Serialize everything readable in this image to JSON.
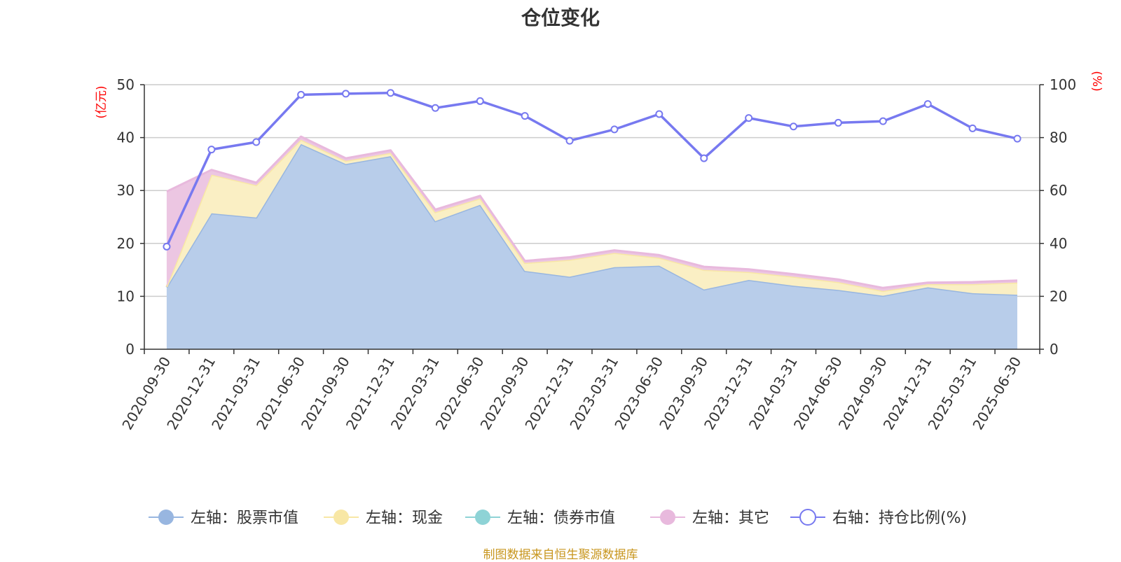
{
  "title": "仓位变化",
  "footer": "制图数据来自恒生聚源数据库",
  "chart_data": {
    "type": "area",
    "title": "仓位变化",
    "categories": [
      "2020-09-30",
      "2020-12-31",
      "2021-03-31",
      "2021-06-30",
      "2021-09-30",
      "2021-12-31",
      "2022-03-31",
      "2022-06-30",
      "2022-09-30",
      "2022-12-31",
      "2023-03-31",
      "2023-06-30",
      "2023-09-30",
      "2023-12-31",
      "2024-03-31",
      "2024-06-30",
      "2024-09-30",
      "2024-12-31",
      "2025-03-31",
      "2025-06-30"
    ],
    "left_axis": {
      "name": "(亿元)",
      "ylim": [
        0,
        50
      ],
      "ticks": [
        "0",
        "10",
        "20",
        "30",
        "40",
        "50"
      ]
    },
    "right_axis": {
      "name": "(%)",
      "ylim": [
        0,
        100
      ],
      "ticks": [
        "0",
        "20",
        "40",
        "60",
        "80",
        "100"
      ]
    },
    "stacked": true,
    "series": [
      {
        "name": "左轴：股票市值",
        "axis": "left",
        "color": "#98b6e0",
        "fill": "#b8cdea",
        "values": [
          11.7,
          25.7,
          24.9,
          38.8,
          35.0,
          36.5,
          24.2,
          27.3,
          14.8,
          13.7,
          15.5,
          15.8,
          11.3,
          13.1,
          12.0,
          11.2,
          10.1,
          11.7,
          10.6,
          10.3
        ]
      },
      {
        "name": "左轴：现金",
        "axis": "left",
        "color": "#f8e7a5",
        "fill": "#faefc4",
        "values": [
          0.1,
          7.3,
          6.1,
          0.8,
          0.6,
          0.6,
          1.7,
          1.2,
          1.5,
          3.2,
          2.7,
          1.5,
          3.7,
          1.5,
          1.7,
          1.5,
          0.9,
          0.6,
          1.7,
          2.3
        ]
      },
      {
        "name": "左轴：债券市值",
        "axis": "left",
        "color": "#8ed3d6",
        "fill": "#c2e8ea",
        "values": [
          0,
          0,
          0,
          0,
          0,
          0,
          0,
          0,
          0,
          0,
          0,
          0,
          0,
          0,
          0,
          0,
          0,
          0,
          0,
          0
        ]
      },
      {
        "name": "左轴：其它",
        "axis": "left",
        "color": "#e8b9dd",
        "fill": "#ecc6e2",
        "values": [
          18.0,
          0.9,
          0.5,
          0.6,
          0.5,
          0.5,
          0.5,
          0.5,
          0.4,
          0.5,
          0.5,
          0.5,
          0.6,
          0.5,
          0.5,
          0.5,
          0.6,
          0.3,
          0.4,
          0.4
        ]
      },
      {
        "name": "右轴：持仓比例(%)",
        "axis": "right",
        "color": "#7779f0",
        "values": [
          38.8,
          75.5,
          78.3,
          96.2,
          96.6,
          96.9,
          91.2,
          93.8,
          88.2,
          78.8,
          83.1,
          88.9,
          72.2,
          87.4,
          84.2,
          85.6,
          86.2,
          92.7,
          83.5,
          79.6
        ]
      }
    ],
    "grid": true,
    "legend_position": "bottom"
  }
}
